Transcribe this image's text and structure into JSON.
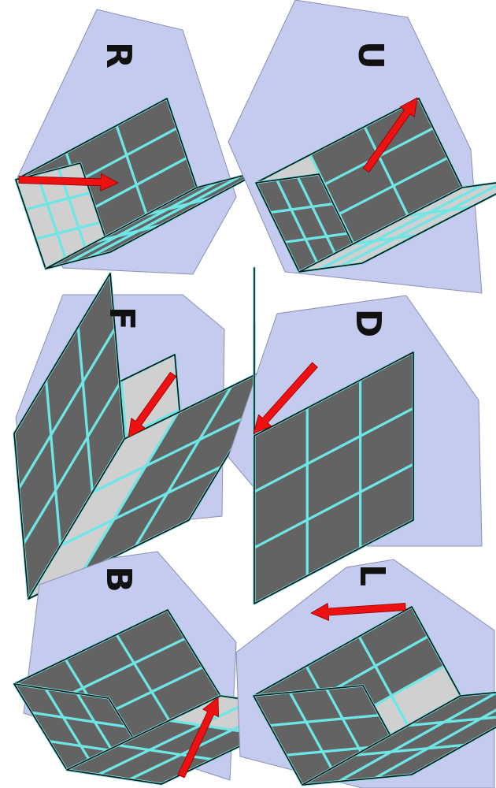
{
  "colors": {
    "background": "#ffffff",
    "panel_fill": "#c5cbef",
    "panel_stroke": "#8a90b0",
    "light_sticker": "#d0d0d0",
    "dark_sticker": "#636363",
    "grid_line": "#6fe6e6",
    "outline": "#111111",
    "arrow": "#ee1111",
    "letter": "#111111"
  },
  "cards": [
    {
      "name": "r",
      "label": "R",
      "faces": {
        "top": "dark",
        "left": "light",
        "right": "dark"
      },
      "highlight": {
        "face": "left",
        "kind": "column",
        "index": 2
      },
      "arrow": "arrow-icon"
    },
    {
      "name": "u",
      "label": "U",
      "faces": {
        "top": "dark",
        "left": "dark",
        "right": "light"
      },
      "highlight": {
        "face": "top",
        "kind": "row",
        "index": 2
      },
      "arrow": "arrow-icon"
    },
    {
      "name": "f",
      "label": "F",
      "faces": {
        "top": "light",
        "left": "dark",
        "right": "dark"
      },
      "highlight": {
        "face": "right",
        "kind": "column",
        "index": 0
      },
      "arrow": "arrow-icon"
    },
    {
      "name": "d",
      "label": "D",
      "faces": {
        "top": "dark",
        "left": "dark",
        "right": "dark"
      },
      "highlight": {
        "face": "left",
        "kind": "column",
        "index": 0
      },
      "arrow": "arrow-icon"
    },
    {
      "name": "b",
      "label": "B",
      "faces": {
        "top": "dark",
        "left": "dark",
        "right": "dark"
      },
      "highlight": {
        "face": "right",
        "kind": "column",
        "index": 2
      },
      "arrow": "arrow-icon"
    },
    {
      "name": "l",
      "label": "L",
      "faces": {
        "top": "dark",
        "left": "dark",
        "right": "dark"
      },
      "highlight": {
        "face": "top",
        "kind": "column",
        "index": 2
      },
      "arrow": "arrow-icon"
    }
  ]
}
